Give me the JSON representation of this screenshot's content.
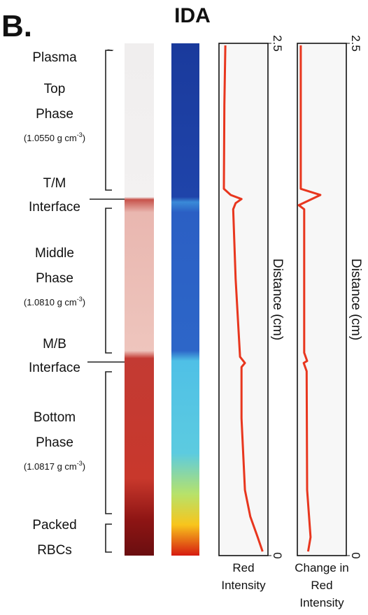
{
  "panel_label": "B.",
  "title": "IDA",
  "tilde": "~",
  "phases": [
    {
      "lines": [
        "Plasma"
      ]
    },
    {
      "lines": [
        "Top",
        "Phase"
      ],
      "density": "(1.0550 g cm",
      "sup": "-3",
      "close": ")"
    },
    {
      "lines": [
        "T/M",
        "Interface"
      ]
    },
    {
      "lines": [
        "Middle",
        "Phase"
      ],
      "density": "(1.0810 g cm",
      "sup": "-3",
      "close": ")"
    },
    {
      "lines": [
        "M/B",
        "Interface"
      ]
    },
    {
      "lines": [
        "Bottom",
        "Phase"
      ],
      "density": "(1.0817 g cm",
      "sup": "-3",
      "close": ")"
    },
    {
      "lines": [
        "Packed",
        "RBCs"
      ]
    }
  ],
  "chart_data": [
    {
      "type": "line",
      "ylabel": "Distance (cm)",
      "xlabel_lines": [
        "Red",
        "Intensity"
      ],
      "ylim": [
        0,
        2.5
      ],
      "yticks": [
        0,
        2.5
      ],
      "xlim": [
        0,
        100
      ],
      "color": "#e8361e",
      "x": [
        13,
        11,
        10,
        24,
        46,
        34,
        29,
        34,
        43,
        53,
        46,
        46,
        53,
        64,
        79,
        89
      ],
      "values": [
        2.49,
        2.2,
        1.79,
        1.76,
        1.74,
        1.72,
        1.69,
        1.35,
        0.97,
        0.94,
        0.92,
        0.67,
        0.32,
        0.19,
        0.09,
        0.02
      ]
    },
    {
      "type": "line",
      "ylabel": "Distance (cm)",
      "xlabel_lines": [
        "Change in",
        "Red",
        "Intensity"
      ],
      "ylim": [
        0,
        2.5
      ],
      "yticks": [
        0,
        2.5
      ],
      "xlim": [
        0,
        100
      ],
      "color": "#e8361e",
      "x": [
        7,
        7,
        47,
        3,
        14,
        14,
        20,
        13,
        19,
        20,
        27,
        22
      ],
      "values": [
        2.49,
        1.79,
        1.76,
        1.71,
        1.69,
        0.99,
        0.95,
        0.94,
        0.9,
        0.32,
        0.09,
        0.02
      ]
    }
  ]
}
